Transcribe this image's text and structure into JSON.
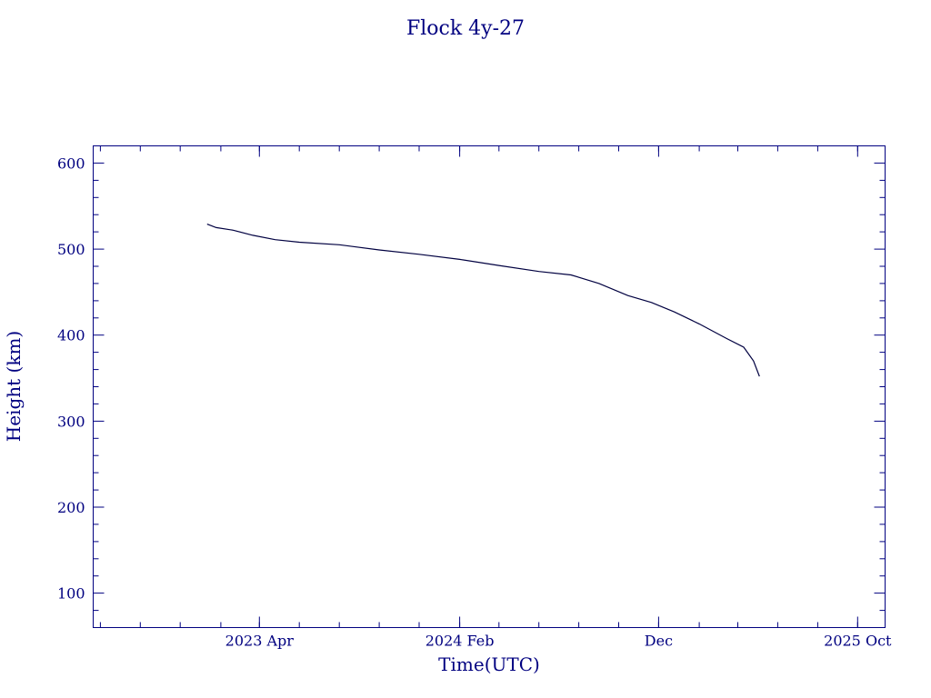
{
  "colors": {
    "ink": "#000080",
    "line": "#000040",
    "background": "#ffffff"
  },
  "chart_data": {
    "type": "line",
    "title": "Flock 4y-27",
    "xlabel": "Time(UTC)",
    "ylabel": "Height (km)",
    "xlim": [
      "2022-07-21",
      "2025-11-12"
    ],
    "ylim": [
      60,
      620
    ],
    "grid": false,
    "legend": "none",
    "x_ticks": [
      {
        "date": "2023-04-01",
        "label": "2023 Apr"
      },
      {
        "date": "2024-02-01",
        "label": "2024 Feb"
      },
      {
        "date": "2024-12-01",
        "label": "Dec"
      },
      {
        "date": "2025-10-01",
        "label": "2025 Oct"
      }
    ],
    "y_ticks": [
      {
        "value": 100,
        "label": "100"
      },
      {
        "value": 200,
        "label": "200"
      },
      {
        "value": 300,
        "label": "300"
      },
      {
        "value": 400,
        "label": "400"
      },
      {
        "value": 500,
        "label": "500"
      },
      {
        "value": 600,
        "label": "600"
      }
    ],
    "series": [
      {
        "x": [
          "2023-01-11",
          "2023-01-25",
          "2023-02-20",
          "2023-03-22",
          "2023-04-25",
          "2023-06-01",
          "2023-08-01",
          "2023-10-01",
          "2023-12-01",
          "2024-02-01",
          "2024-04-01",
          "2024-06-01",
          "2024-07-20",
          "2024-09-01",
          "2024-10-15",
          "2024-11-20",
          "2024-12-25",
          "2025-02-01",
          "2025-03-15",
          "2025-04-10",
          "2025-04-25",
          "2025-05-04"
        ],
        "y": [
          529,
          525,
          522,
          516,
          511,
          508,
          505,
          499,
          494,
          488,
          481,
          474,
          470,
          460,
          446,
          438,
          427,
          413,
          396,
          386,
          370,
          352
        ]
      }
    ]
  }
}
